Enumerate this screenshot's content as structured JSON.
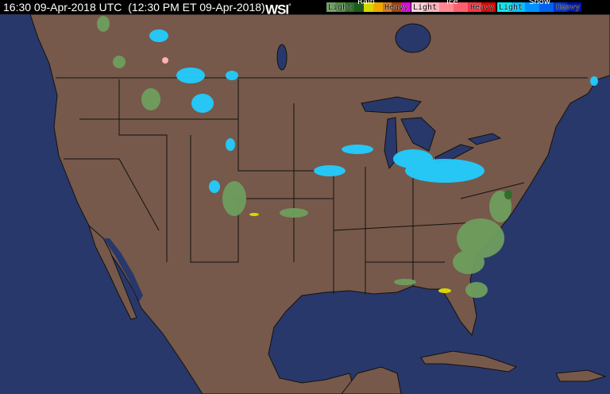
{
  "header": {
    "timestamp": "16:30 09-Apr-2018 UTC  (12:30 PM ET 09-Apr-2018)",
    "logo": "WSI",
    "logo_mark": "°"
  },
  "legend": {
    "rain": {
      "title": "Rain",
      "light": "Light",
      "heavy": "Heavy",
      "colors": [
        "#6e9e5e",
        "#4e8a3e",
        "#2e6e2a",
        "#1e5a1e",
        "#d8d800",
        "#f0a800",
        "#d87818",
        "#a04010",
        "#e000e0"
      ]
    },
    "ice": {
      "title": "Ice",
      "light": "Light",
      "heavy": "Heavy",
      "colors": [
        "#ffd0d8",
        "#ffb0b8",
        "#ff8890",
        "#ff6070",
        "#ff3040",
        "#e00000"
      ]
    },
    "snow": {
      "title": "Snow",
      "light": "Light",
      "heavy": "Heavy",
      "colors": [
        "#00e8f0",
        "#00c0ff",
        "#0090ff",
        "#0060f0",
        "#0030d0",
        "#0010a0"
      ]
    }
  },
  "map_colors": {
    "ocean": "#29386a",
    "land": "#76594a",
    "border": "#111111"
  }
}
